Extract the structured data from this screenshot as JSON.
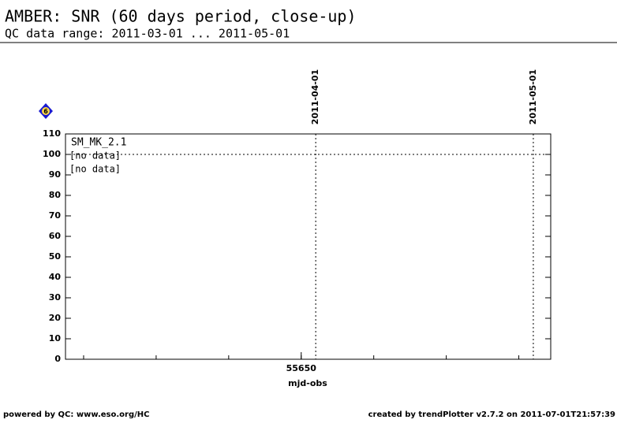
{
  "chart_data": {
    "type": "line",
    "title": "AMBER: SNR (60 days period, close-up)",
    "subtitle": "QC data range: 2011-03-01 ... 2011-05-01",
    "xlabel": "mjd-obs",
    "x": [],
    "series": [
      {
        "name": "SM_MK_2.1",
        "color": "#000000",
        "values": []
      }
    ],
    "annotations": [
      {
        "text": "[no data]",
        "color": "#000000"
      },
      {
        "text": "[no data]",
        "color": "#ff0000"
      }
    ],
    "xlim": [
      55617.5,
      55684.4
    ],
    "xticks": [
      55650
    ],
    "xminorticks": [
      55620,
      55630,
      55640,
      55650,
      55660,
      55670,
      55680
    ],
    "ylim": [
      0,
      110
    ],
    "yticks": [
      0,
      10,
      20,
      30,
      40,
      50,
      60,
      70,
      80,
      90,
      100,
      110
    ],
    "hline": 100,
    "date_markers": [
      {
        "x": 55652,
        "label": "2011-04-01"
      },
      {
        "x": 55682,
        "label": "2011-05-01"
      }
    ],
    "badge": 6,
    "footer_left": "powered by QC: www.eso.org/HC",
    "footer_right": "created by trendPlotter v2.7.2 on 2011-07-01T21:57:39"
  }
}
